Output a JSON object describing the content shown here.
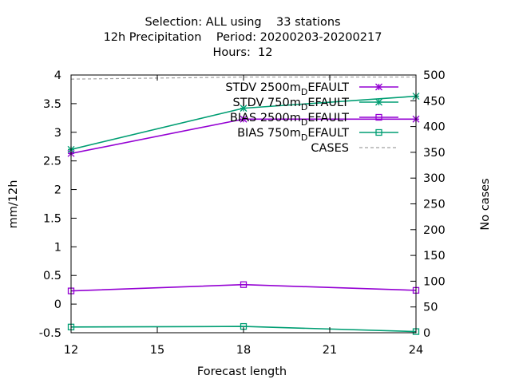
{
  "chart_data": {
    "type": "line",
    "title_lines": [
      "Selection: ALL using    33 stations",
      "12h Precipitation    Period: 20200203-20200217",
      "Hours:  12"
    ],
    "xlabel": "Forecast length",
    "ylabel": "mm/12h",
    "y2label": "No cases",
    "xlim": [
      12,
      24
    ],
    "ylim": [
      -0.5,
      4
    ],
    "y2lim": [
      0,
      500
    ],
    "xticks": [
      "12",
      "15",
      "18",
      "21",
      "24"
    ],
    "yticks": [
      "-0.5",
      "0",
      "0.5",
      "1",
      "1.5",
      "2",
      "2.5",
      "3",
      "3.5",
      "4"
    ],
    "y2ticks": [
      "0",
      "50",
      "100",
      "150",
      "200",
      "250",
      "300",
      "350",
      "400",
      "450",
      "500"
    ],
    "grid": false,
    "legend_position": "top-right",
    "series": [
      {
        "name": "STDV 2500m",
        "name_sub": "D",
        "name_rest": "EFAULT",
        "axis": "y",
        "color": "#9400d3",
        "marker": "star",
        "x": [
          12,
          18,
          24
        ],
        "values": [
          2.63,
          3.23,
          3.23
        ]
      },
      {
        "name": "STDV 750m",
        "name_sub": "D",
        "name_rest": "EFAULT",
        "axis": "y",
        "color": "#009e73",
        "marker": "star",
        "x": [
          12,
          18,
          24
        ],
        "values": [
          2.7,
          3.42,
          3.63
        ]
      },
      {
        "name": "BIAS 2500m",
        "name_sub": "D",
        "name_rest": "EFAULT",
        "axis": "y",
        "color": "#9400d3",
        "marker": "square",
        "x": [
          12,
          18,
          24
        ],
        "values": [
          0.23,
          0.34,
          0.24
        ]
      },
      {
        "name": "BIAS 750m",
        "name_sub": "D",
        "name_rest": "EFAULT",
        "axis": "y",
        "color": "#009e73",
        "marker": "square",
        "x": [
          12,
          18,
          24
        ],
        "values": [
          -0.4,
          -0.39,
          -0.48
        ]
      },
      {
        "name": "CASES",
        "name_sub": "",
        "name_rest": "",
        "axis": "y2",
        "color": "#a0a0a0",
        "marker": "none",
        "dashed": true,
        "x": [
          12,
          18,
          24
        ],
        "values": [
          492,
          496,
          496
        ]
      }
    ]
  }
}
